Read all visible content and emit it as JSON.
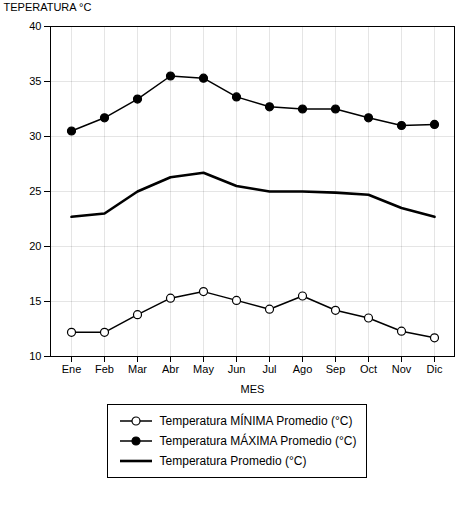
{
  "chart_data": {
    "type": "line",
    "categories": [
      "Ene",
      "Feb",
      "Mar",
      "Abr",
      "May",
      "Jun",
      "Jul",
      "Ago",
      "Sep",
      "Oct",
      "Nov",
      "Dic"
    ],
    "series": [
      {
        "name": "Temperatura MÍNIMA Promedio (°C)",
        "color": "#000000",
        "marker": "open_circle",
        "values": [
          12.2,
          12.2,
          13.8,
          15.3,
          15.9,
          15.1,
          14.3,
          15.5,
          14.2,
          13.5,
          12.3,
          11.7
        ]
      },
      {
        "name": "Temperatura MÁXIMA Promedio (°C)",
        "color": "#000000",
        "marker": "circle",
        "values": [
          30.5,
          31.7,
          33.4,
          35.5,
          35.3,
          33.6,
          32.7,
          32.5,
          32.5,
          31.7,
          31.0,
          31.1
        ]
      },
      {
        "name": "Temperatura Promedio (°C)",
        "color": "#000000",
        "marker": "none",
        "values": [
          22.7,
          23.0,
          25.0,
          26.3,
          26.7,
          25.5,
          25.0,
          25.0,
          24.9,
          24.7,
          23.5,
          22.7
        ]
      }
    ],
    "xlabel": "MES",
    "ylabel": "TEPERATURA °C",
    "ylim": [
      10,
      40
    ],
    "yticks": [
      10,
      15,
      20,
      25,
      30,
      35,
      40
    ],
    "grid": true,
    "legend": "bottom"
  }
}
